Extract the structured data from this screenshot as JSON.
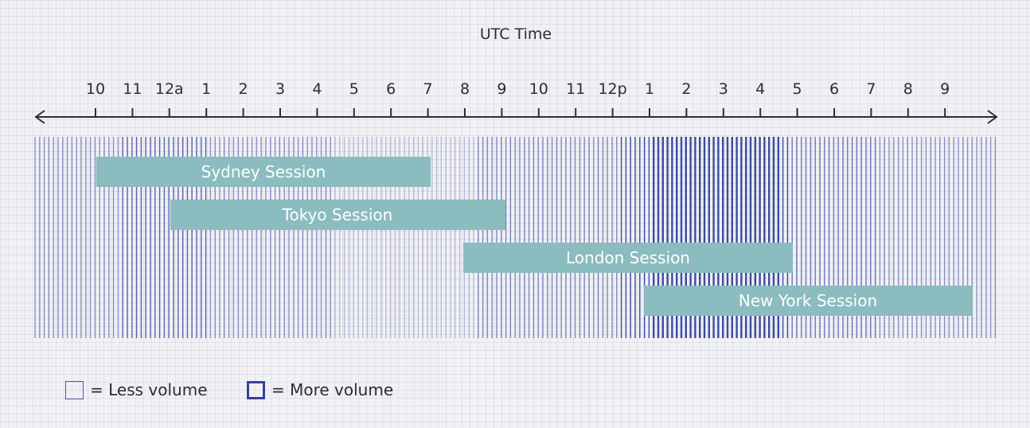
{
  "title": "UTC Time",
  "ticks": [
    "10",
    "11",
    "12a",
    "1",
    "2",
    "3",
    "4",
    "5",
    "6",
    "7",
    "8",
    "9",
    "10",
    "11",
    "12p",
    "1",
    "2",
    "3",
    "4",
    "5",
    "6",
    "7",
    "8",
    "9"
  ],
  "sessions": [
    {
      "label": "Sydney Session"
    },
    {
      "label": "Tokyo Session"
    },
    {
      "label": "London Session"
    },
    {
      "label": "New York Session"
    }
  ],
  "legend": {
    "less": "= Less volume",
    "more": "= More volume"
  },
  "colors": {
    "session_bar": "#8bbcbf",
    "volume_line": "#33429a",
    "axis": "#2b2b3a"
  }
}
